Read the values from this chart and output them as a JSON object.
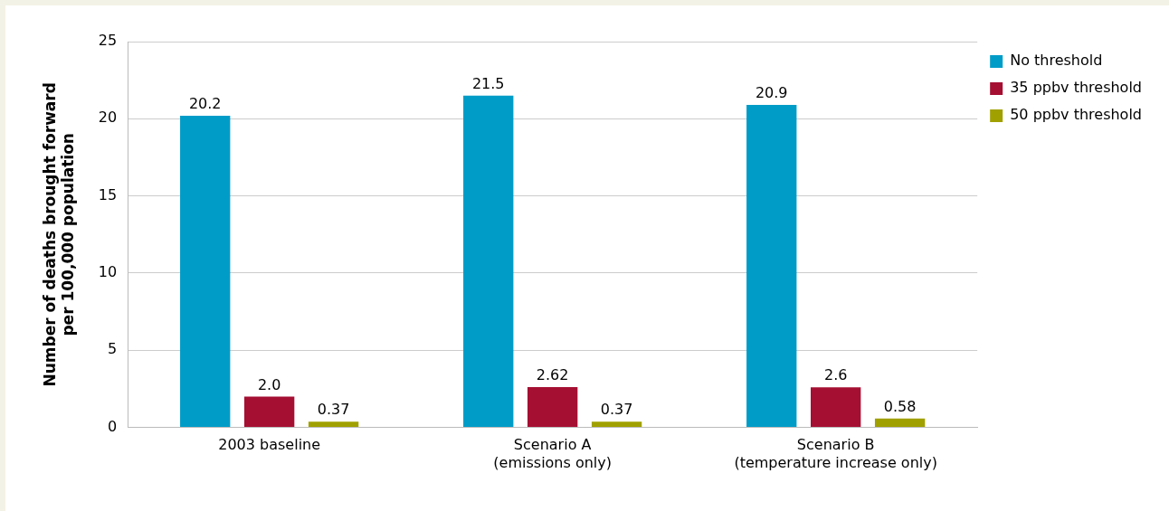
{
  "chart_data": {
    "type": "bar",
    "categories": [
      "2003 baseline",
      "Scenario A\n(emissions only)",
      "Scenario B\n(temperature increase only)"
    ],
    "ylabel": "Number of deaths brought forward\nper 100,000 population",
    "series": [
      {
        "name": "No threshold",
        "color": "#009cc8",
        "values": [
          20.2,
          21.5,
          20.9
        ],
        "value_labels": [
          "20.2",
          "21.5",
          "20.9"
        ]
      },
      {
        "name": "35 ppbv threshold",
        "color": "#a50f32",
        "values": [
          2.0,
          2.62,
          2.6
        ],
        "value_labels": [
          "2.0",
          "2.62",
          "2.6"
        ]
      },
      {
        "name": "50 ppbv threshold",
        "color": "#a0a000",
        "values": [
          0.37,
          0.37,
          0.58
        ],
        "value_labels": [
          "0.37",
          "0.37",
          "0.58"
        ]
      }
    ],
    "ylim": [
      0,
      25
    ],
    "yticks": [
      0,
      5,
      10,
      15,
      20,
      25
    ],
    "grid": "y",
    "legend": "top right"
  }
}
